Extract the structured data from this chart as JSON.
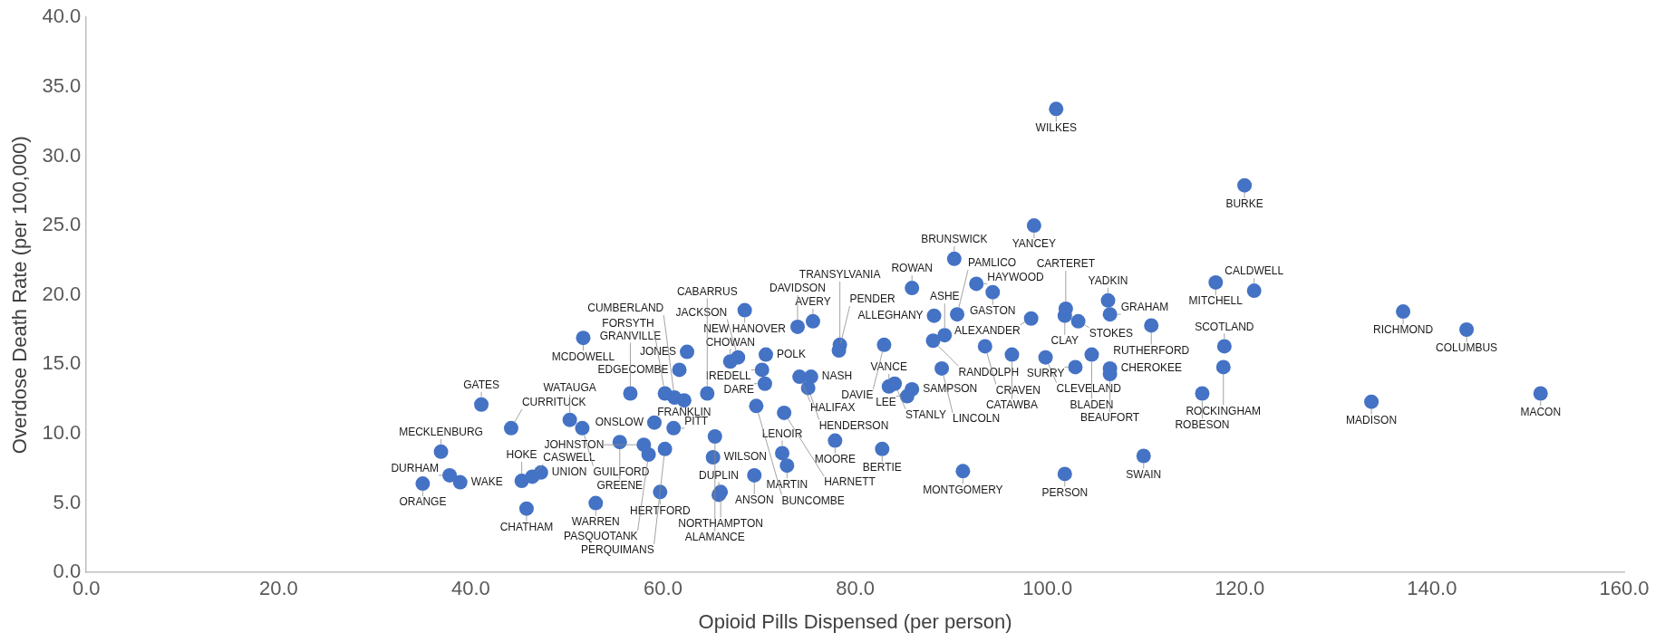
{
  "chart_data": {
    "type": "scatter",
    "xlabel": "Opioid Pills Dispensed (per person)",
    "ylabel": "Overdose Death Rate (per 100,000)",
    "series": [
      {
        "color": "#4472c4",
        "x": [
          100.9,
          120.5,
          98.6,
          90.3,
          92.6,
          85.9,
          94.3,
          117.5,
          121.5,
          106.3,
          137.0,
          143.6,
          68.5,
          101.9,
          101.8,
          98.3,
          103.2,
          106.5,
          110.8,
          90.6,
          88.2,
          75.6,
          74.0,
          51.7,
          62.5,
          61.7,
          70.7,
          67.8,
          67.0,
          70.3,
          70.6,
          74.2,
          75.4,
          75.1,
          83.5,
          84.1,
          85.9,
          85.4,
          78.4,
          78.3,
          83.0,
          89.3,
          88.1,
          93.5,
          96.3,
          99.8,
          104.6,
          102.9,
          106.5,
          106.5,
          89.0,
          118.4,
          118.3,
          116.1,
          133.7,
          151.3,
          77.9,
          82.8,
          110.0,
          91.2,
          101.8,
          72.4,
          72.9,
          69.5,
          59.7,
          66.0,
          65.8,
          53.0,
          45.8,
          35.0,
          37.8,
          38.9,
          45.3,
          46.4,
          47.3,
          36.9,
          41.1,
          44.2,
          50.3,
          51.6,
          59.1,
          61.1,
          65.4,
          55.5,
          58.0,
          58.5,
          65.2,
          60.2,
          56.6,
          60.2,
          61.2,
          62.2,
          64.6,
          69.7,
          72.6
        ],
        "values": [
          33.4,
          27.9,
          25.0,
          22.6,
          20.8,
          20.5,
          20.2,
          20.9,
          20.3,
          19.6,
          18.8,
          17.5,
          18.9,
          19.0,
          18.5,
          18.3,
          18.1,
          18.6,
          17.8,
          18.6,
          18.5,
          18.1,
          17.7,
          16.9,
          15.9,
          14.6,
          15.7,
          15.5,
          15.2,
          14.6,
          13.6,
          14.1,
          14.1,
          13.3,
          13.4,
          13.6,
          13.2,
          12.7,
          16.4,
          16.0,
          16.4,
          17.1,
          16.7,
          16.3,
          15.7,
          15.5,
          15.7,
          14.8,
          14.7,
          14.3,
          14.7,
          16.3,
          14.8,
          12.9,
          12.3,
          12.9,
          9.5,
          8.9,
          8.4,
          7.3,
          7.1,
          8.6,
          7.7,
          7.0,
          5.8,
          5.8,
          5.6,
          5.0,
          4.6,
          6.4,
          7.0,
          6.5,
          6.6,
          6.9,
          7.2,
          8.7,
          12.1,
          10.4,
          11.0,
          10.4,
          10.8,
          10.4,
          9.8,
          9.4,
          9.2,
          8.5,
          8.3,
          8.9,
          12.9,
          12.9,
          12.6,
          12.4,
          12.9,
          12.0,
          11.5
        ]
      }
    ],
    "annotations": [
      {
        "text": "WILKES",
        "x": 100.9,
        "y": 33.4
      },
      {
        "text": "BURKE",
        "x": 120.5,
        "y": 27.9
      },
      {
        "text": "YANCEY",
        "x": 98.6,
        "y": 25.0
      },
      {
        "text": "BRUNSWICK",
        "x": 90.3,
        "y": 22.6
      },
      {
        "text": "HAYWOOD",
        "x": 92.6,
        "y": 20.8
      },
      {
        "text": "ROWAN",
        "x": 85.9,
        "y": 20.5
      },
      {
        "text": "GASTON",
        "x": 94.3,
        "y": 20.2
      },
      {
        "text": "MITCHELL",
        "x": 117.5,
        "y": 20.9
      },
      {
        "text": "CALDWELL",
        "x": 121.5,
        "y": 20.3
      },
      {
        "text": "YADKIN",
        "x": 106.3,
        "y": 19.6
      },
      {
        "text": "RICHMOND",
        "x": 137.0,
        "y": 18.8
      },
      {
        "text": "COLUMBUS",
        "x": 143.6,
        "y": 17.5
      },
      {
        "text": "NEW HANOVER",
        "x": 68.5,
        "y": 18.9
      },
      {
        "text": "CARTERET",
        "x": 101.9,
        "y": 19.0
      },
      {
        "text": "CLAY",
        "x": 101.8,
        "y": 18.5
      },
      {
        "text": "ALEXANDER",
        "x": 98.3,
        "y": 18.3
      },
      {
        "text": "STOKES",
        "x": 103.2,
        "y": 18.1
      },
      {
        "text": "GRAHAM",
        "x": 106.5,
        "y": 18.6
      },
      {
        "text": "RUTHERFORD",
        "x": 110.8,
        "y": 17.8
      },
      {
        "text": "PAMLICO",
        "x": 90.6,
        "y": 18.6
      },
      {
        "text": "ALLEGHANY",
        "x": 88.2,
        "y": 18.5
      },
      {
        "text": "AVERY",
        "x": 75.6,
        "y": 18.1
      },
      {
        "text": "DAVIDSON",
        "x": 74.0,
        "y": 17.7
      },
      {
        "text": "MCDOWELL",
        "x": 51.7,
        "y": 16.9
      },
      {
        "text": "JONES",
        "x": 62.5,
        "y": 15.9
      },
      {
        "text": "EDGECOMBE",
        "x": 61.7,
        "y": 14.6
      },
      {
        "text": "POLK",
        "x": 70.7,
        "y": 15.7
      },
      {
        "text": "JACKSON",
        "x": 67.8,
        "y": 15.5
      },
      {
        "text": "CHOWAN",
        "x": 67.0,
        "y": 15.2
      },
      {
        "text": "IREDELL",
        "x": 70.3,
        "y": 14.6
      },
      {
        "text": "DARE",
        "x": 70.6,
        "y": 13.6
      },
      {
        "text": "HALIFAX",
        "x": 74.2,
        "y": 14.1
      },
      {
        "text": "NASH",
        "x": 75.4,
        "y": 14.1
      },
      {
        "text": "HENDERSON",
        "x": 75.1,
        "y": 13.3
      },
      {
        "text": "VANCE",
        "x": 83.5,
        "y": 13.4
      },
      {
        "text": "STANLY",
        "x": 84.1,
        "y": 13.6
      },
      {
        "text": "SAMPSON",
        "x": 85.9,
        "y": 13.2
      },
      {
        "text": "LEE",
        "x": 85.4,
        "y": 12.7
      },
      {
        "text": "TRANSYLVANIA",
        "x": 78.4,
        "y": 16.4
      },
      {
        "text": "PENDER",
        "x": 78.3,
        "y": 16.0
      },
      {
        "text": "DAVIE",
        "x": 83.0,
        "y": 16.4
      },
      {
        "text": "ASHE",
        "x": 89.3,
        "y": 17.1
      },
      {
        "text": "RANDOLPH",
        "x": 88.1,
        "y": 16.7
      },
      {
        "text": "CRAVEN",
        "x": 93.5,
        "y": 16.3
      },
      {
        "text": "CATAWBA",
        "x": 96.3,
        "y": 15.7
      },
      {
        "text": "CLEVELAND",
        "x": 99.8,
        "y": 15.5
      },
      {
        "text": "BLADEN",
        "x": 104.6,
        "y": 15.7
      },
      {
        "text": "SURRY",
        "x": 102.9,
        "y": 14.8
      },
      {
        "text": "CHEROKEE",
        "x": 106.5,
        "y": 14.7
      },
      {
        "text": "BEAUFORT",
        "x": 106.5,
        "y": 14.3
      },
      {
        "text": "LINCOLN",
        "x": 89.0,
        "y": 14.7
      },
      {
        "text": "SCOTLAND",
        "x": 118.4,
        "y": 16.3
      },
      {
        "text": "ROCKINGHAM",
        "x": 118.3,
        "y": 14.8
      },
      {
        "text": "ROBESON",
        "x": 116.1,
        "y": 12.9
      },
      {
        "text": "MADISON",
        "x": 133.7,
        "y": 12.3
      },
      {
        "text": "MACON",
        "x": 151.3,
        "y": 12.9
      },
      {
        "text": "MOORE",
        "x": 77.9,
        "y": 9.5
      },
      {
        "text": "BERTIE",
        "x": 82.8,
        "y": 8.9
      },
      {
        "text": "SWAIN",
        "x": 110.0,
        "y": 8.4
      },
      {
        "text": "MONTGOMERY",
        "x": 91.2,
        "y": 7.3
      },
      {
        "text": "PERSON",
        "x": 101.8,
        "y": 7.1
      },
      {
        "text": "LENOIR",
        "x": 72.4,
        "y": 8.6
      },
      {
        "text": "MARTIN",
        "x": 72.9,
        "y": 7.7
      },
      {
        "text": "ANSON",
        "x": 69.5,
        "y": 7.0
      },
      {
        "text": "HERTFORD",
        "x": 59.7,
        "y": 5.8
      },
      {
        "text": "NORTHAMPTON",
        "x": 66.0,
        "y": 5.8
      },
      {
        "text": "DUPLIN",
        "x": 65.8,
        "y": 5.6
      },
      {
        "text": "WARREN",
        "x": 53.0,
        "y": 5.0
      },
      {
        "text": "CHATHAM",
        "x": 45.8,
        "y": 4.6
      },
      {
        "text": "ORANGE",
        "x": 35.0,
        "y": 6.4
      },
      {
        "text": "DURHAM",
        "x": 37.8,
        "y": 7.0
      },
      {
        "text": "WAKE",
        "x": 38.9,
        "y": 6.5
      },
      {
        "text": "HOKE",
        "x": 45.3,
        "y": 6.6
      },
      {
        "text": "CASWELL",
        "x": 46.4,
        "y": 6.9
      },
      {
        "text": "UNION",
        "x": 47.3,
        "y": 7.2
      },
      {
        "text": "MECKLENBURG",
        "x": 36.9,
        "y": 8.7
      },
      {
        "text": "GATES",
        "x": 41.1,
        "y": 12.1
      },
      {
        "text": "CURRITUCK",
        "x": 44.2,
        "y": 10.4
      },
      {
        "text": "WATAUGA",
        "x": 50.3,
        "y": 11.0
      },
      {
        "text": "GUILFORD",
        "x": 51.6,
        "y": 10.4
      },
      {
        "text": "ONSLOW",
        "x": 59.1,
        "y": 10.8
      },
      {
        "text": "PITT",
        "x": 61.1,
        "y": 10.4
      },
      {
        "text": "ALAMANCE",
        "x": 65.4,
        "y": 9.8
      },
      {
        "text": "GREENE",
        "x": 55.5,
        "y": 9.4
      },
      {
        "text": "JOHNSTON",
        "x": 58.0,
        "y": 9.2
      },
      {
        "text": "PASQUOTANK",
        "x": 58.5,
        "y": 8.5
      },
      {
        "text": "WILSON",
        "x": 65.2,
        "y": 8.3
      },
      {
        "text": "PERQUIMANS",
        "x": 60.2,
        "y": 8.9
      },
      {
        "text": "GRANVILLE",
        "x": 56.6,
        "y": 12.9
      },
      {
        "text": "FORSYTH",
        "x": 60.2,
        "y": 12.9
      },
      {
        "text": "CUMBERLAND",
        "x": 61.2,
        "y": 12.6
      },
      {
        "text": "FRANKLIN",
        "x": 62.2,
        "y": 12.4
      },
      {
        "text": "CABARRUS",
        "x": 64.6,
        "y": 12.9
      },
      {
        "text": "BUNCOMBE",
        "x": 69.7,
        "y": 12.0
      },
      {
        "text": "HARNETT",
        "x": 72.6,
        "y": 11.5
      }
    ],
    "xlim": [
      0,
      160
    ],
    "xticks": [
      {
        "value": 0,
        "label": "0.0"
      },
      {
        "value": 20,
        "label": "20.0"
      },
      {
        "value": 40,
        "label": "40.0"
      },
      {
        "value": 60,
        "label": "60.0"
      },
      {
        "value": 80,
        "label": "80.0"
      },
      {
        "value": 100,
        "label": "100.0"
      },
      {
        "value": 120,
        "label": "120.0"
      },
      {
        "value": 140,
        "label": "140.0"
      },
      {
        "value": 160,
        "label": "160.0"
      }
    ],
    "ylim": [
      0,
      40
    ],
    "yticks": [
      {
        "value": 0,
        "label": "0.0"
      },
      {
        "value": 5,
        "label": "5.0"
      },
      {
        "value": 10,
        "label": "10.0"
      },
      {
        "value": 15,
        "label": "15.0"
      },
      {
        "value": 20,
        "label": "20.0"
      },
      {
        "value": 25,
        "label": "25.0"
      },
      {
        "value": 30,
        "label": "30.0"
      },
      {
        "value": 35,
        "label": "35.0"
      },
      {
        "value": 40,
        "label": "40.0"
      }
    ],
    "grid": false,
    "legend": false,
    "marker": "circle"
  }
}
